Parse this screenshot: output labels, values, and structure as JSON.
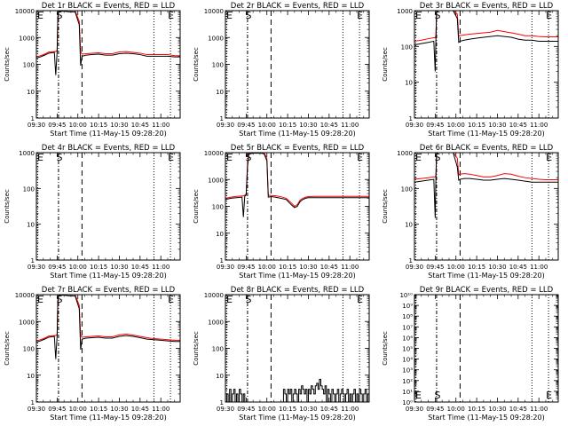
{
  "start_label": "Start Time (11-May-15 09:28:20)",
  "ylabel": "Counts/sec",
  "time_ticks": [
    "09:30",
    "09:45",
    "10:00",
    "10:15",
    "10:30",
    "10:45",
    "11:00"
  ],
  "time_range_minutes": [
    0,
    104
  ],
  "colors": {
    "events": "#000000",
    "lld": "#ff0000"
  },
  "chart_data": [
    {
      "type": "line",
      "title": "Det 1r BLACK = Events, RED = LLD",
      "scale": "log",
      "ylim": [
        1,
        10000
      ],
      "ytick_labels": [
        "1",
        "10",
        "100",
        "1000",
        "10000"
      ],
      "ytick_values": [
        1,
        10,
        100,
        1000,
        10000
      ],
      "markers": {
        "S": 17,
        "E": 97
      },
      "events": {
        "x": [
          0,
          3,
          6,
          9,
          13,
          14,
          15,
          15.5,
          16,
          17,
          20,
          24,
          26,
          28,
          31,
          32,
          33,
          36,
          40,
          45,
          50,
          55,
          60,
          65,
          70,
          75,
          80,
          85,
          90,
          95,
          100,
          104
        ],
        "y": [
          170,
          190,
          220,
          260,
          280,
          40,
          300,
          5000,
          9000,
          9500,
          9500,
          9000,
          9000,
          9000,
          3000,
          90,
          200,
          220,
          230,
          240,
          220,
          220,
          250,
          260,
          250,
          230,
          200,
          200,
          200,
          200,
          190,
          190
        ]
      },
      "lld": {
        "x": [
          0,
          3,
          6,
          9,
          13,
          14,
          15,
          15.5,
          16,
          17,
          20,
          24,
          26,
          28,
          31,
          32,
          33,
          36,
          40,
          45,
          50,
          55,
          60,
          65,
          70,
          75,
          80,
          85,
          90,
          95,
          100,
          104
        ],
        "y": [
          190,
          210,
          240,
          290,
          300,
          300,
          330,
          6000,
          10000,
          10000,
          10000,
          10000,
          10000,
          10000,
          4000,
          300,
          240,
          250,
          260,
          270,
          250,
          250,
          290,
          300,
          280,
          260,
          230,
          230,
          230,
          230,
          210,
          210
        ]
      }
    },
    {
      "type": "line",
      "title": "Det 2r BLACK = Events, RED = LLD",
      "scale": "log",
      "ylim": [
        1,
        10000
      ],
      "ytick_labels": [
        "1",
        "10",
        "100",
        "1000",
        "10000"
      ],
      "ytick_values": [
        1,
        10,
        100,
        1000,
        10000
      ],
      "markers": {
        "S": 17,
        "E": 97
      },
      "events": {
        "x": [],
        "y": []
      },
      "lld": {
        "x": [],
        "y": []
      }
    },
    {
      "type": "line",
      "title": "Det 3r BLACK = Events, RED = LLD",
      "scale": "log",
      "ylim": [
        1,
        1000
      ],
      "ytick_labels": [
        "1",
        "10",
        "100",
        "1000"
      ],
      "ytick_values": [
        1,
        10,
        100,
        1000
      ],
      "markers": {
        "S": 17,
        "E": 97
      },
      "events": {
        "x": [
          0,
          5,
          10,
          14,
          15,
          15.5,
          16,
          17,
          20,
          24,
          26,
          28,
          31,
          32,
          33,
          36,
          40,
          45,
          50,
          55,
          60,
          65,
          70,
          75,
          80,
          85,
          90,
          95,
          100,
          104
        ],
        "y": [
          110,
          120,
          130,
          140,
          20,
          150,
          900,
          1000,
          1000,
          1000,
          1000,
          1000,
          600,
          130,
          140,
          150,
          160,
          170,
          180,
          190,
          200,
          190,
          180,
          160,
          150,
          150,
          140,
          140,
          140,
          140
        ]
      },
      "lld": {
        "x": [
          0,
          5,
          10,
          14,
          15,
          15.5,
          16,
          17,
          20,
          24,
          26,
          28,
          31,
          32,
          33,
          36,
          40,
          45,
          50,
          55,
          60,
          65,
          70,
          75,
          80,
          85,
          90,
          95,
          100,
          104
        ],
        "y": [
          140,
          150,
          165,
          175,
          175,
          200,
          1000,
          1000,
          1000,
          1000,
          1000,
          1000,
          800,
          190,
          200,
          210,
          220,
          230,
          240,
          250,
          280,
          260,
          240,
          220,
          200,
          200,
          190,
          185,
          185,
          185
        ]
      }
    },
    {
      "type": "line",
      "title": "Det 4r BLACK = Events, RED = LLD",
      "scale": "log",
      "ylim": [
        1,
        1000
      ],
      "ytick_labels": [
        "1",
        "10",
        "100",
        "1000"
      ],
      "ytick_values": [
        1,
        10,
        100,
        1000
      ],
      "markers": {
        "S": 17,
        "E": 97
      },
      "events": {
        "x": [],
        "y": []
      },
      "lld": {
        "x": [],
        "y": []
      }
    },
    {
      "type": "line",
      "title": "Det 5r BLACK = Events, RED = LLD",
      "scale": "log",
      "ylim": [
        1,
        10000
      ],
      "ytick_labels": [
        "1",
        "10",
        "100",
        "1000",
        "10000"
      ],
      "ytick_values": [
        1,
        10,
        100,
        1000,
        10000
      ],
      "markers": {
        "S": 17,
        "E": 97
      },
      "events": {
        "x": [
          0,
          4,
          8,
          12,
          13,
          14,
          15,
          16,
          17,
          20,
          24,
          26,
          28,
          30,
          31,
          33,
          36,
          40,
          44,
          46,
          48,
          50,
          52,
          54,
          56,
          58,
          60,
          65,
          70,
          80,
          90,
          100,
          104
        ],
        "y": [
          180,
          200,
          210,
          220,
          40,
          240,
          260,
          3000,
          9000,
          9500,
          9500,
          9500,
          9000,
          5000,
          220,
          230,
          220,
          200,
          180,
          140,
          110,
          90,
          100,
          150,
          180,
          200,
          210,
          210,
          210,
          210,
          210,
          210,
          210
        ]
      },
      "lld": {
        "x": [
          0,
          4,
          8,
          12,
          13,
          14,
          15,
          16,
          17,
          20,
          24,
          26,
          28,
          30,
          31,
          33,
          36,
          40,
          44,
          46,
          48,
          50,
          52,
          54,
          56,
          58,
          60,
          65,
          70,
          80,
          90,
          100,
          104
        ],
        "y": [
          200,
          220,
          235,
          245,
          245,
          260,
          290,
          4000,
          10000,
          10000,
          10000,
          10000,
          10000,
          6000,
          260,
          255,
          250,
          230,
          200,
          160,
          130,
          100,
          115,
          170,
          200,
          220,
          230,
          235,
          235,
          235,
          235,
          235,
          235
        ]
      }
    },
    {
      "type": "line",
      "title": "Det 6r BLACK = Events, RED = LLD",
      "scale": "log",
      "ylim": [
        1,
        1000
      ],
      "ytick_labels": [
        "1",
        "10",
        "100",
        "1000"
      ],
      "ytick_values": [
        1,
        10,
        100,
        1000
      ],
      "markers": {
        "S": 17,
        "E": 97
      },
      "events": {
        "x": [
          0,
          5,
          10,
          14,
          15,
          15.5,
          16,
          17,
          20,
          24,
          26,
          28,
          31,
          32,
          33,
          36,
          40,
          45,
          50,
          55,
          60,
          65,
          70,
          75,
          80,
          85,
          90,
          95,
          100,
          104
        ],
        "y": [
          150,
          160,
          170,
          180,
          15,
          190,
          900,
          1000,
          1000,
          1000,
          1000,
          1000,
          400,
          170,
          180,
          190,
          190,
          180,
          170,
          170,
          180,
          190,
          180,
          170,
          160,
          150,
          150,
          150,
          150,
          150
        ]
      },
      "lld": {
        "x": [
          0,
          5,
          10,
          14,
          15,
          15.5,
          16,
          17,
          20,
          24,
          26,
          28,
          31,
          32,
          33,
          36,
          40,
          45,
          50,
          55,
          60,
          65,
          70,
          75,
          80,
          85,
          90,
          95,
          100,
          104
        ],
        "y": [
          180,
          190,
          200,
          210,
          210,
          230,
          1000,
          1000,
          1000,
          1000,
          1000,
          1000,
          700,
          240,
          250,
          260,
          250,
          230,
          210,
          210,
          230,
          260,
          250,
          220,
          200,
          190,
          180,
          175,
          175,
          175
        ]
      }
    },
    {
      "type": "line",
      "title": "Det 7r BLACK = Events, RED = LLD",
      "scale": "log",
      "ylim": [
        1,
        10000
      ],
      "ytick_labels": [
        "1",
        "10",
        "100",
        "1000",
        "10000"
      ],
      "ytick_values": [
        1,
        10,
        100,
        1000,
        10000
      ],
      "markers": {
        "S": 17,
        "E": 97
      },
      "events": {
        "x": [
          0,
          3,
          6,
          9,
          13,
          14,
          15,
          15.5,
          16,
          17,
          20,
          24,
          26,
          28,
          31,
          32,
          33,
          36,
          40,
          45,
          50,
          55,
          60,
          65,
          70,
          75,
          80,
          85,
          90,
          95,
          100,
          104
        ],
        "y": [
          170,
          190,
          220,
          260,
          280,
          40,
          300,
          5000,
          9000,
          9500,
          9500,
          9000,
          9000,
          9000,
          3000,
          90,
          220,
          240,
          250,
          260,
          240,
          240,
          280,
          300,
          280,
          250,
          220,
          210,
          200,
          190,
          180,
          180
        ]
      },
      "lld": {
        "x": [
          0,
          3,
          6,
          9,
          13,
          14,
          15,
          15.5,
          16,
          17,
          20,
          24,
          26,
          28,
          31,
          32,
          33,
          36,
          40,
          45,
          50,
          55,
          60,
          65,
          70,
          75,
          80,
          85,
          90,
          95,
          100,
          104
        ],
        "y": [
          190,
          210,
          240,
          290,
          300,
          300,
          330,
          6000,
          10000,
          10000,
          10000,
          10000,
          10000,
          10000,
          4000,
          300,
          260,
          270,
          280,
          290,
          270,
          270,
          320,
          340,
          310,
          280,
          250,
          230,
          220,
          210,
          200,
          200
        ]
      }
    },
    {
      "type": "step",
      "title": "Det 8r BLACK = Events, RED = LLD",
      "scale": "log",
      "ylim": [
        1,
        10000
      ],
      "ytick_labels": [
        "1",
        "10",
        "100",
        "1000",
        "10000"
      ],
      "ytick_values": [
        1,
        10,
        100,
        1000,
        10000
      ],
      "markers": {
        "S": 17,
        "E": 97
      },
      "events": {
        "x": [
          0,
          1,
          2,
          3,
          4,
          5,
          6,
          7,
          8,
          9,
          10,
          11,
          12,
          13,
          14,
          42,
          43,
          44,
          45,
          46,
          47,
          48,
          49,
          50,
          51,
          52,
          53,
          54,
          55,
          56,
          57,
          58,
          59,
          60,
          61,
          62,
          63,
          64,
          65,
          66,
          67,
          68,
          69,
          70,
          71,
          72,
          73,
          74,
          75,
          76,
          77,
          78,
          79,
          80,
          81,
          82,
          83,
          84,
          85,
          86,
          87,
          88,
          89,
          90,
          91,
          92,
          93,
          94,
          95,
          96,
          97,
          98,
          99,
          100,
          101,
          102,
          103,
          104
        ],
        "y": [
          1,
          2,
          1,
          3,
          1,
          2,
          3,
          1,
          2,
          1,
          3,
          2,
          1,
          2,
          1,
          3,
          2,
          1,
          3,
          2,
          3,
          1,
          2,
          3,
          2,
          1,
          3,
          2,
          4,
          3,
          2,
          3,
          1,
          3,
          2,
          4,
          3,
          2,
          4,
          5,
          3,
          7,
          4,
          3,
          2,
          4,
          1,
          3,
          2,
          1,
          3,
          2,
          1,
          2,
          3,
          1,
          2,
          3,
          2,
          1,
          2,
          3,
          1,
          2,
          1,
          2,
          3,
          1,
          2,
          1,
          3,
          2,
          1,
          2,
          3,
          1,
          2,
          2
        ]
      },
      "lld": {
        "x": [],
        "y": []
      }
    },
    {
      "type": "line",
      "title": "Det 9r BLACK = Events, RED = LLD",
      "scale": "log",
      "ylim": [
        1,
        10000000000
      ],
      "ytick_labels": [
        "10⁰",
        "10¹",
        "10²",
        "10³",
        "10⁴",
        "10⁵",
        "10⁶",
        "10⁷",
        "10⁸",
        "10⁹",
        "10¹⁰"
      ],
      "ytick_values": [
        1,
        10,
        100,
        1000,
        10000,
        100000,
        1000000,
        10000000,
        100000000,
        1000000000,
        10000000000
      ],
      "markers": {
        "S": 17,
        "E": 97
      },
      "events": {
        "x": [],
        "y": []
      },
      "lld": {
        "x": [],
        "y": []
      }
    }
  ]
}
